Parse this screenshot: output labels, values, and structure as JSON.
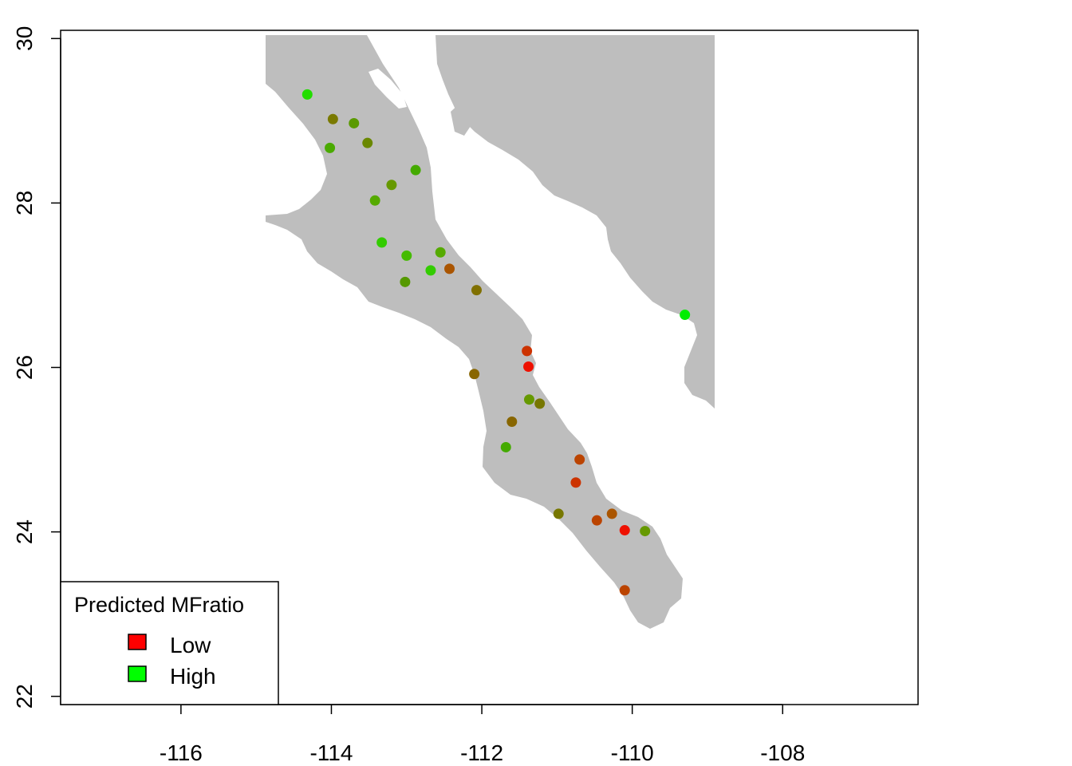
{
  "chart_data": {
    "type": "scatter",
    "title": "",
    "xlabel": "",
    "ylabel": "",
    "xlim": [
      -117.6,
      -106.2
    ],
    "ylim": [
      21.9,
      30.1
    ],
    "x_ticks": [
      -116,
      -114,
      -112,
      -110,
      -108
    ],
    "y_ticks": [
      22,
      24,
      26,
      28,
      30
    ],
    "x_tick_labels": [
      "-116",
      "-114",
      "-112",
      "-110",
      "-108"
    ],
    "y_tick_labels": [
      "22",
      "24",
      "26",
      "28",
      "30"
    ],
    "background_land_color": "#bebebe",
    "grid": false,
    "legend": {
      "position": "bottom-left",
      "title": "Predicted MFratio",
      "entries": [
        {
          "label": "Low",
          "color": "#ff0000"
        },
        {
          "label": "High",
          "color": "#00ff00"
        }
      ]
    },
    "points": [
      {
        "x": -114.32,
        "y": 29.32,
        "color": "#22dd00"
      },
      {
        "x": -113.98,
        "y": 29.02,
        "color": "#7a7a00"
      },
      {
        "x": -113.7,
        "y": 28.97,
        "color": "#5a9a00"
      },
      {
        "x": -114.02,
        "y": 28.67,
        "color": "#4aaa00"
      },
      {
        "x": -113.52,
        "y": 28.73,
        "color": "#6a8800"
      },
      {
        "x": -112.88,
        "y": 28.4,
        "color": "#44aa00"
      },
      {
        "x": -113.2,
        "y": 28.22,
        "color": "#669900"
      },
      {
        "x": -113.42,
        "y": 28.03,
        "color": "#55aa00"
      },
      {
        "x": -113.33,
        "y": 27.52,
        "color": "#33cc00"
      },
      {
        "x": -113.0,
        "y": 27.36,
        "color": "#44bb00"
      },
      {
        "x": -112.55,
        "y": 27.4,
        "color": "#55aa00"
      },
      {
        "x": -112.68,
        "y": 27.18,
        "color": "#33cc00"
      },
      {
        "x": -112.43,
        "y": 27.2,
        "color": "#aa5500"
      },
      {
        "x": -113.02,
        "y": 27.04,
        "color": "#559900"
      },
      {
        "x": -112.07,
        "y": 26.94,
        "color": "#807000"
      },
      {
        "x": -109.3,
        "y": 26.64,
        "color": "#00ee00"
      },
      {
        "x": -111.4,
        "y": 26.2,
        "color": "#cc3300"
      },
      {
        "x": -111.38,
        "y": 26.01,
        "color": "#ee1100"
      },
      {
        "x": -112.1,
        "y": 25.92,
        "color": "#886600"
      },
      {
        "x": -111.37,
        "y": 25.61,
        "color": "#669900"
      },
      {
        "x": -111.23,
        "y": 25.56,
        "color": "#777700"
      },
      {
        "x": -111.6,
        "y": 25.34,
        "color": "#886600"
      },
      {
        "x": -111.68,
        "y": 25.03,
        "color": "#44aa00"
      },
      {
        "x": -110.7,
        "y": 24.88,
        "color": "#bb4400"
      },
      {
        "x": -110.75,
        "y": 24.6,
        "color": "#cc3300"
      },
      {
        "x": -110.98,
        "y": 24.22,
        "color": "#777700"
      },
      {
        "x": -110.27,
        "y": 24.22,
        "color": "#aa5500"
      },
      {
        "x": -110.47,
        "y": 24.14,
        "color": "#bb4400"
      },
      {
        "x": -110.1,
        "y": 24.02,
        "color": "#ee1100"
      },
      {
        "x": -109.83,
        "y": 24.01,
        "color": "#669900"
      },
      {
        "x": -110.1,
        "y": 23.29,
        "color": "#bb4400"
      }
    ]
  }
}
